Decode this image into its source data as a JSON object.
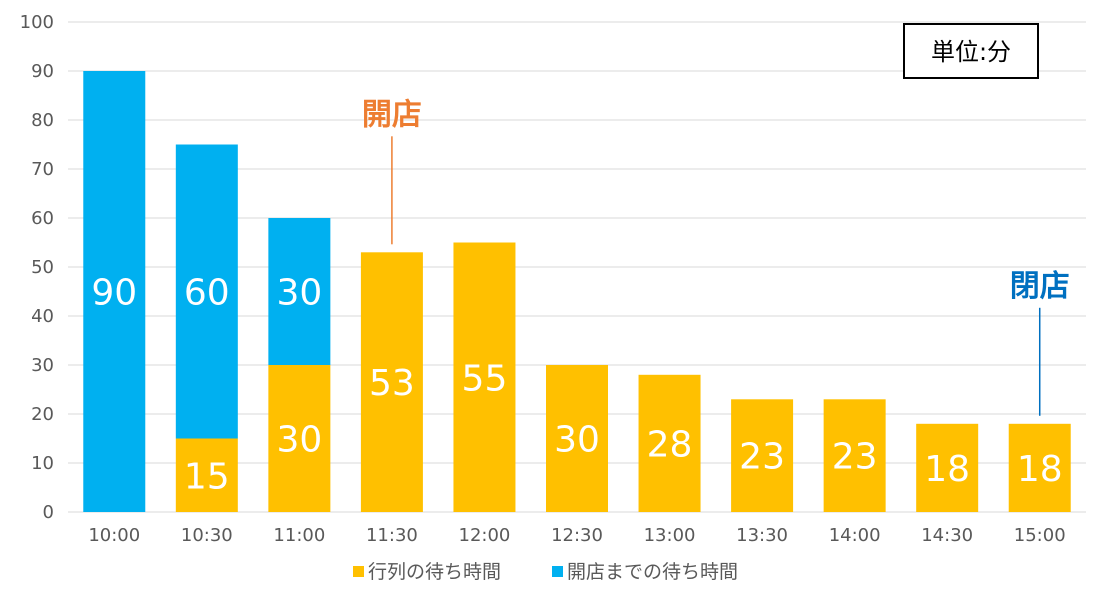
{
  "chart_data": {
    "type": "bar",
    "stacked": true,
    "categories": [
      "10:00",
      "10:30",
      "11:00",
      "11:30",
      "12:00",
      "12:30",
      "13:00",
      "13:30",
      "14:00",
      "14:30",
      "15:00"
    ],
    "series": [
      {
        "name": "行列の待ち時間",
        "color": "#FFC000",
        "values": [
          0,
          15,
          30,
          53,
          55,
          30,
          28,
          23,
          23,
          18,
          18
        ]
      },
      {
        "name": "開店までの待ち時間",
        "color": "#00B0F0",
        "values": [
          90,
          60,
          30,
          0,
          0,
          0,
          0,
          0,
          0,
          0,
          0
        ]
      }
    ],
    "ylim": [
      0,
      100
    ],
    "yticks": [
      0,
      10,
      20,
      30,
      40,
      50,
      60,
      70,
      80,
      90,
      100
    ],
    "grid": true,
    "legend_position": "bottom",
    "unit_label": "単位:分",
    "annotations": [
      {
        "text": "開店",
        "category": "11:30",
        "color": "#ED7D31"
      },
      {
        "text": "閉店",
        "category": "15:00",
        "color": "#0070C0"
      }
    ]
  }
}
